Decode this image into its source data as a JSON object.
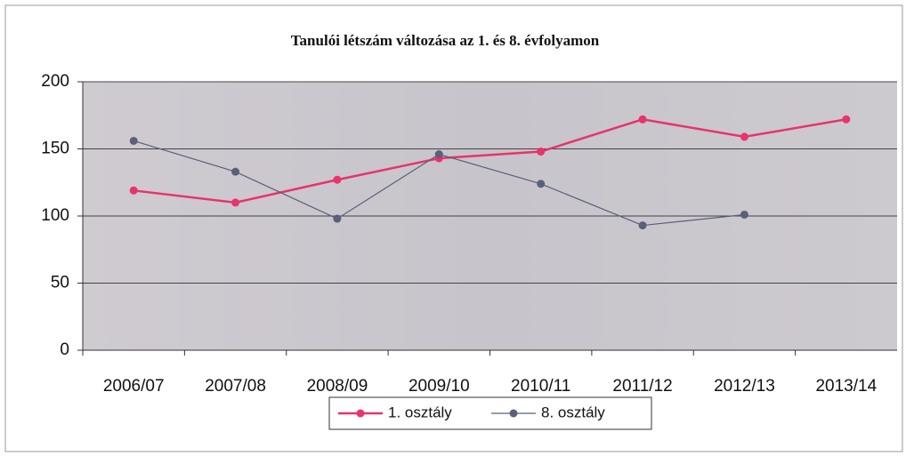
{
  "chart_data": {
    "type": "line",
    "title": "Tanulói létszám változása az 1. és 8. évfolyamon",
    "categories": [
      "2006/07",
      "2007/08",
      "2008/09",
      "2009/10",
      "2010/11",
      "2011/12",
      "2012/13",
      "2013/14"
    ],
    "series": [
      {
        "name": "1. osztály",
        "color": "#e8336b",
        "values": [
          119,
          110,
          127,
          143,
          148,
          172,
          159,
          172
        ]
      },
      {
        "name": "8. osztály",
        "color": "#5a5f7a",
        "values": [
          156,
          133,
          98,
          146,
          124,
          93,
          101,
          null
        ]
      }
    ],
    "ylim": [
      0,
      200
    ],
    "yticks": [
      0,
      50,
      100,
      150,
      200
    ],
    "grid": true,
    "legend": "bottom"
  }
}
